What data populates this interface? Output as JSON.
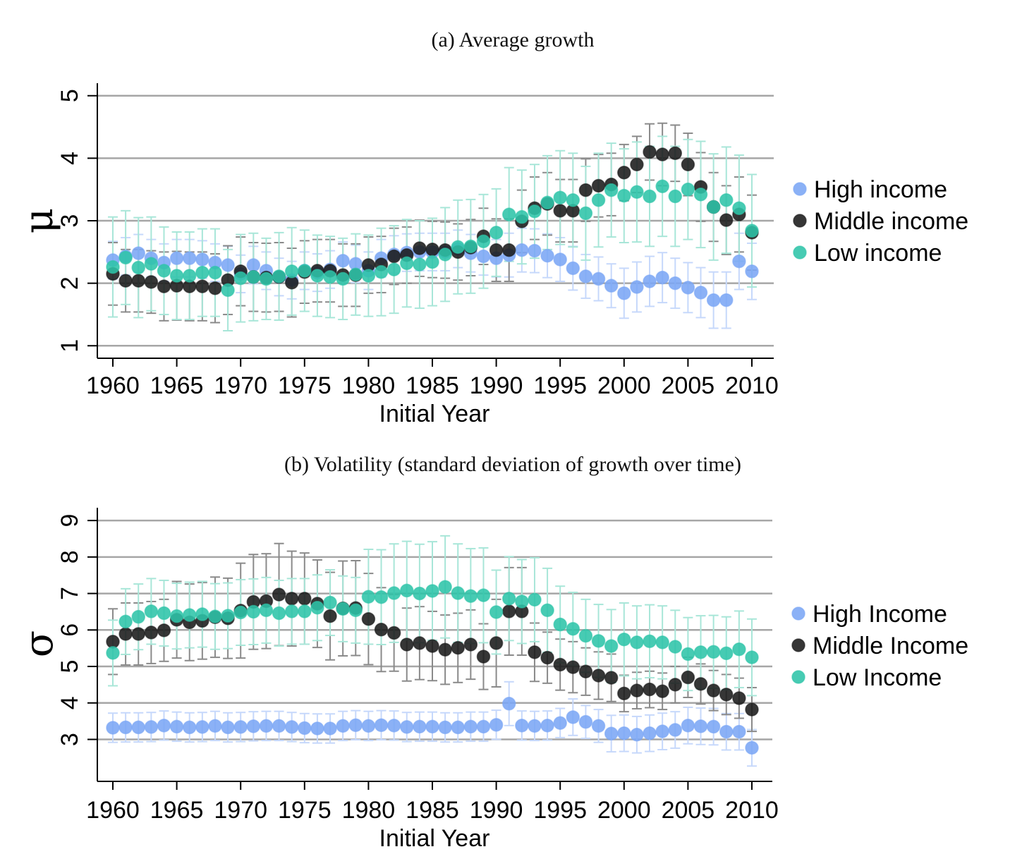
{
  "chart_data": [
    {
      "type": "scatter",
      "panel": "(a) Average growth",
      "xlabel": "Initial Year",
      "ylabel": "μ",
      "xlim": [
        1959,
        2011.5
      ],
      "ylim": [
        0.8,
        5.2
      ],
      "xticks": [
        1960,
        1965,
        1970,
        1975,
        1980,
        1985,
        1990,
        1995,
        2000,
        2005,
        2010
      ],
      "yticks": [
        1,
        2,
        3,
        4,
        5
      ],
      "grid": true,
      "legend_position": "right",
      "colors": {
        "high": "#7BA6F5",
        "middle": "#1A1A1A",
        "low": "#2EC4A8"
      },
      "series": [
        {
          "name": "High income",
          "key": "high",
          "x": [
            1960,
            1961,
            1962,
            1963,
            1964,
            1965,
            1966,
            1967,
            1968,
            1969,
            1970,
            1971,
            1972,
            1973,
            1974,
            1975,
            1976,
            1977,
            1978,
            1979,
            1980,
            1981,
            1982,
            1983,
            1984,
            1985,
            1986,
            1987,
            1988,
            1989,
            1990,
            1991,
            1992,
            1993,
            1994,
            1995,
            1996,
            1997,
            1998,
            1999,
            2000,
            2001,
            2002,
            2003,
            2004,
            2005,
            2006,
            2007,
            2008,
            2009,
            2010
          ],
          "y": [
            2.37,
            2.43,
            2.48,
            2.4,
            2.33,
            2.4,
            2.4,
            2.38,
            2.33,
            2.29,
            2.15,
            2.29,
            2.2,
            2.1,
            2.05,
            2.2,
            2.17,
            2.22,
            2.36,
            2.31,
            2.2,
            2.4,
            2.46,
            2.49,
            2.5,
            2.5,
            2.5,
            2.55,
            2.48,
            2.43,
            2.4,
            2.45,
            2.53,
            2.52,
            2.44,
            2.38,
            2.24,
            2.11,
            2.07,
            1.96,
            1.84,
            1.94,
            2.03,
            2.09,
            2.0,
            1.93,
            1.85,
            1.73,
            1.73,
            2.35,
            2.19
          ],
          "err": [
            0.3,
            0.3,
            0.3,
            0.3,
            0.3,
            0.3,
            0.3,
            0.3,
            0.3,
            0.3,
            0.3,
            0.3,
            0.3,
            0.3,
            0.3,
            0.3,
            0.3,
            0.3,
            0.3,
            0.3,
            0.3,
            0.3,
            0.3,
            0.3,
            0.3,
            0.3,
            0.3,
            0.3,
            0.3,
            0.3,
            0.3,
            0.35,
            0.35,
            0.35,
            0.35,
            0.35,
            0.35,
            0.35,
            0.35,
            0.35,
            0.4,
            0.4,
            0.4,
            0.4,
            0.4,
            0.4,
            0.4,
            0.45,
            0.45,
            0.45,
            0.45
          ]
        },
        {
          "name": "Middle income",
          "key": "middle",
          "x": [
            1960,
            1961,
            1962,
            1963,
            1964,
            1965,
            1966,
            1967,
            1968,
            1969,
            1970,
            1971,
            1972,
            1973,
            1974,
            1975,
            1976,
            1977,
            1978,
            1979,
            1980,
            1981,
            1982,
            1983,
            1984,
            1985,
            1986,
            1987,
            1988,
            1989,
            1990,
            1991,
            1992,
            1993,
            1994,
            1995,
            1996,
            1997,
            1998,
            1999,
            2000,
            2001,
            2002,
            2003,
            2004,
            2005,
            2006,
            2007,
            2008,
            2009,
            2010
          ],
          "y": [
            2.15,
            2.04,
            2.04,
            2.02,
            1.95,
            1.96,
            1.95,
            1.95,
            1.92,
            2.05,
            2.19,
            2.1,
            2.09,
            2.1,
            2.01,
            2.18,
            2.2,
            2.2,
            2.13,
            2.13,
            2.29,
            2.3,
            2.43,
            2.45,
            2.56,
            2.54,
            2.53,
            2.5,
            2.57,
            2.75,
            2.53,
            2.53,
            2.99,
            3.2,
            3.27,
            3.16,
            3.16,
            3.49,
            3.56,
            3.58,
            3.77,
            3.9,
            4.1,
            4.06,
            4.08,
            3.9,
            3.54,
            3.22,
            3.01,
            3.1,
            2.81
          ],
          "err": [
            0.5,
            0.5,
            0.5,
            0.5,
            0.55,
            0.55,
            0.55,
            0.55,
            0.55,
            0.55,
            0.55,
            0.55,
            0.55,
            0.55,
            0.55,
            0.5,
            0.5,
            0.5,
            0.5,
            0.5,
            0.45,
            0.45,
            0.45,
            0.45,
            0.45,
            0.45,
            0.45,
            0.45,
            0.45,
            0.45,
            0.5,
            0.5,
            0.5,
            0.5,
            0.5,
            0.5,
            0.5,
            0.5,
            0.5,
            0.5,
            0.45,
            0.45,
            0.45,
            0.5,
            0.45,
            0.5,
            0.55,
            0.55,
            0.55,
            0.6,
            0.6
          ]
        },
        {
          "name": "Low income",
          "key": "low",
          "x": [
            1960,
            1961,
            1962,
            1963,
            1964,
            1965,
            1966,
            1967,
            1968,
            1969,
            1970,
            1971,
            1972,
            1973,
            1974,
            1975,
            1976,
            1977,
            1978,
            1979,
            1980,
            1981,
            1982,
            1983,
            1984,
            1985,
            1986,
            1987,
            1988,
            1989,
            1990,
            1991,
            1992,
            1993,
            1994,
            1995,
            1996,
            1997,
            1998,
            1999,
            2000,
            2001,
            2002,
            2003,
            2004,
            2005,
            2006,
            2007,
            2008,
            2009,
            2010
          ],
          "y": [
            2.26,
            2.41,
            2.25,
            2.31,
            2.2,
            2.12,
            2.12,
            2.17,
            2.17,
            1.89,
            2.08,
            2.1,
            2.07,
            2.11,
            2.19,
            2.2,
            2.12,
            2.1,
            2.07,
            2.14,
            2.12,
            2.18,
            2.22,
            2.32,
            2.3,
            2.34,
            2.46,
            2.58,
            2.59,
            2.67,
            2.81,
            3.1,
            3.06,
            3.15,
            3.29,
            3.37,
            3.33,
            3.12,
            3.33,
            3.49,
            3.4,
            3.46,
            3.39,
            3.55,
            3.39,
            3.5,
            3.42,
            3.22,
            3.33,
            3.2,
            2.84
          ],
          "err": [
            0.8,
            0.75,
            0.8,
            0.75,
            0.7,
            0.7,
            0.7,
            0.7,
            0.7,
            0.65,
            0.7,
            0.7,
            0.65,
            0.7,
            0.7,
            0.65,
            0.65,
            0.65,
            0.65,
            0.65,
            0.65,
            0.7,
            0.7,
            0.7,
            0.7,
            0.7,
            0.75,
            0.75,
            0.75,
            0.75,
            0.7,
            0.75,
            0.75,
            0.75,
            0.75,
            0.75,
            0.75,
            0.75,
            0.75,
            0.75,
            0.75,
            0.8,
            0.8,
            0.8,
            0.8,
            0.8,
            0.85,
            0.85,
            0.85,
            0.85,
            0.9
          ]
        }
      ]
    },
    {
      "type": "scatter",
      "panel": "(b) Volatility (standard deviation of growth over time)",
      "xlabel": "Initial Year",
      "ylabel": "σ",
      "xlim": [
        1959,
        2011.5
      ],
      "ylim": [
        1.85,
        9.35
      ],
      "xticks": [
        1960,
        1965,
        1970,
        1975,
        1980,
        1985,
        1990,
        1995,
        2000,
        2005,
        2010
      ],
      "yticks": [
        3,
        4,
        5,
        6,
        7,
        8,
        9
      ],
      "grid": true,
      "legend_position": "right",
      "colors": {
        "high": "#7BA6F5",
        "middle": "#1A1A1A",
        "low": "#2EC4A8"
      },
      "series": [
        {
          "name": "High Income",
          "key": "high",
          "x": [
            1960,
            1961,
            1962,
            1963,
            1964,
            1965,
            1966,
            1967,
            1968,
            1969,
            1970,
            1971,
            1972,
            1973,
            1974,
            1975,
            1976,
            1977,
            1978,
            1979,
            1980,
            1981,
            1982,
            1983,
            1984,
            1985,
            1986,
            1987,
            1988,
            1989,
            1990,
            1991,
            1992,
            1993,
            1994,
            1995,
            1996,
            1997,
            1998,
            1999,
            2000,
            2001,
            2002,
            2003,
            2004,
            2005,
            2006,
            2007,
            2008,
            2009,
            2010
          ],
          "y": [
            3.32,
            3.33,
            3.33,
            3.34,
            3.38,
            3.35,
            3.33,
            3.34,
            3.37,
            3.33,
            3.34,
            3.36,
            3.37,
            3.37,
            3.34,
            3.31,
            3.3,
            3.3,
            3.37,
            3.39,
            3.37,
            3.39,
            3.38,
            3.34,
            3.35,
            3.35,
            3.33,
            3.33,
            3.35,
            3.35,
            3.4,
            3.98,
            3.38,
            3.37,
            3.38,
            3.45,
            3.61,
            3.48,
            3.37,
            3.16,
            3.17,
            3.13,
            3.17,
            3.22,
            3.26,
            3.38,
            3.36,
            3.35,
            3.21,
            3.21,
            2.77
          ],
          "err": [
            0.4,
            0.4,
            0.4,
            0.4,
            0.4,
            0.4,
            0.4,
            0.4,
            0.4,
            0.4,
            0.4,
            0.4,
            0.4,
            0.4,
            0.4,
            0.4,
            0.4,
            0.4,
            0.4,
            0.4,
            0.4,
            0.4,
            0.4,
            0.4,
            0.4,
            0.4,
            0.4,
            0.4,
            0.4,
            0.4,
            0.4,
            0.6,
            0.4,
            0.4,
            0.4,
            0.4,
            0.5,
            0.45,
            0.45,
            0.5,
            0.5,
            0.5,
            0.5,
            0.5,
            0.5,
            0.5,
            0.5,
            0.5,
            0.5,
            0.5,
            0.5
          ]
        },
        {
          "name": "Middle Income",
          "key": "middle",
          "x": [
            1960,
            1961,
            1962,
            1963,
            1964,
            1965,
            1966,
            1967,
            1968,
            1969,
            1970,
            1971,
            1972,
            1973,
            1974,
            1975,
            1976,
            1977,
            1978,
            1979,
            1980,
            1981,
            1982,
            1983,
            1984,
            1985,
            1986,
            1987,
            1988,
            1989,
            1990,
            1991,
            1992,
            1993,
            1994,
            1995,
            1996,
            1997,
            1998,
            1999,
            2000,
            2001,
            2002,
            2003,
            2004,
            2005,
            2006,
            2007,
            2008,
            2009,
            2010
          ],
          "y": [
            5.68,
            5.89,
            5.89,
            5.93,
            5.99,
            6.28,
            6.21,
            6.25,
            6.35,
            6.32,
            6.53,
            6.77,
            6.79,
            6.97,
            6.86,
            6.86,
            6.72,
            6.38,
            6.59,
            6.6,
            6.3,
            6.01,
            5.92,
            5.6,
            5.64,
            5.56,
            5.46,
            5.51,
            5.6,
            5.27,
            5.64,
            6.51,
            6.51,
            5.39,
            5.24,
            5.05,
            4.98,
            4.86,
            4.75,
            4.69,
            4.26,
            4.34,
            4.37,
            4.32,
            4.5,
            4.7,
            4.52,
            4.34,
            4.23,
            4.13,
            3.82
          ],
          "err": [
            0.9,
            0.85,
            0.85,
            0.85,
            0.85,
            1.05,
            1.05,
            1.05,
            1.1,
            1.1,
            1.3,
            1.3,
            1.3,
            1.4,
            1.3,
            1.25,
            1.2,
            1.2,
            1.3,
            1.3,
            1.25,
            1.15,
            1.05,
            1.0,
            1.0,
            0.95,
            0.95,
            0.95,
            0.95,
            0.9,
            1.2,
            1.2,
            1.2,
            0.8,
            0.7,
            0.7,
            0.7,
            0.65,
            0.65,
            0.65,
            0.5,
            0.5,
            0.5,
            0.5,
            0.5,
            0.55,
            0.55,
            0.55,
            0.55,
            0.55,
            0.6
          ]
        },
        {
          "name": "Low Income",
          "key": "low",
          "x": [
            1960,
            1961,
            1962,
            1963,
            1964,
            1965,
            1966,
            1967,
            1968,
            1969,
            1970,
            1971,
            1972,
            1973,
            1974,
            1975,
            1976,
            1977,
            1978,
            1979,
            1980,
            1981,
            1982,
            1983,
            1984,
            1985,
            1986,
            1987,
            1988,
            1989,
            1990,
            1991,
            1992,
            1993,
            1994,
            1995,
            1996,
            1997,
            1998,
            1999,
            2000,
            2001,
            2002,
            2003,
            2004,
            2005,
            2006,
            2007,
            2008,
            2009,
            2010
          ],
          "y": [
            5.37,
            6.23,
            6.36,
            6.51,
            6.46,
            6.38,
            6.41,
            6.43,
            6.37,
            6.39,
            6.48,
            6.5,
            6.54,
            6.46,
            6.51,
            6.51,
            6.61,
            6.75,
            6.58,
            6.54,
            6.91,
            6.9,
            7.01,
            7.08,
            7.0,
            7.07,
            7.18,
            7.01,
            6.93,
            6.95,
            6.49,
            6.86,
            6.78,
            6.83,
            6.54,
            6.15,
            6.03,
            5.84,
            5.7,
            5.56,
            5.74,
            5.66,
            5.69,
            5.66,
            5.54,
            5.34,
            5.39,
            5.4,
            5.36,
            5.47,
            5.25
          ],
          "err": [
            0.9,
            0.9,
            0.9,
            0.9,
            0.9,
            0.9,
            0.9,
            0.9,
            0.9,
            0.9,
            0.9,
            0.9,
            0.9,
            0.9,
            0.9,
            0.9,
            0.9,
            0.9,
            0.9,
            0.9,
            1.3,
            1.3,
            1.35,
            1.35,
            1.35,
            1.35,
            1.4,
            1.35,
            1.3,
            1.3,
            1.15,
            1.15,
            1.15,
            1.15,
            1.15,
            1.05,
            1.0,
            1.0,
            1.0,
            1.0,
            1.0,
            1.0,
            1.0,
            1.0,
            1.0,
            1.0,
            1.0,
            1.0,
            1.0,
            1.05,
            1.05
          ]
        }
      ]
    }
  ]
}
